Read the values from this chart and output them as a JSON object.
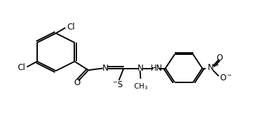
{
  "bg_color": "#ffffff",
  "line_color": "#000000",
  "line_width": 1.4,
  "font_size": 8.5,
  "xlim": [
    0,
    10.5
  ],
  "ylim": [
    0,
    5.5
  ]
}
